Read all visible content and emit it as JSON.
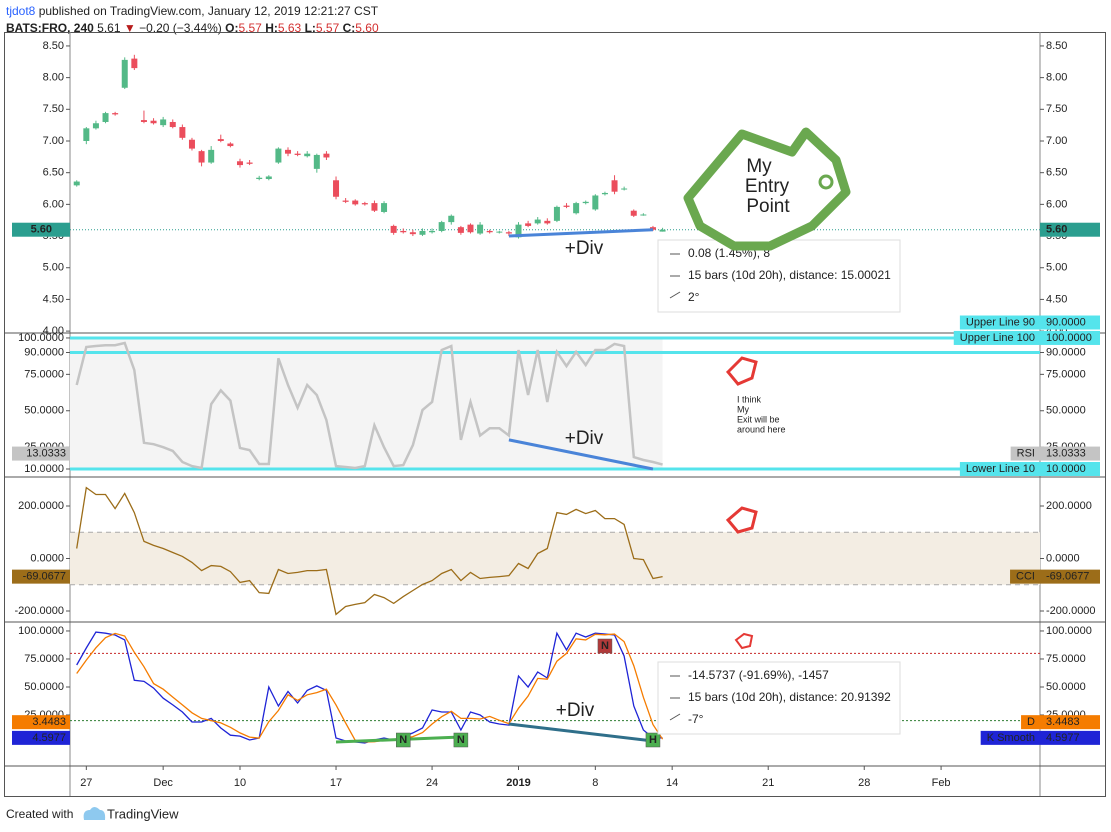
{
  "header": {
    "author": "tjdot8",
    "published": "published on TradingView.com, January 12, 2019 12:21:27 CST",
    "symbol": "BATS:FRO, 240",
    "last": "5.61",
    "arrow": "▼",
    "change": "−0.20 (−3.44%)",
    "ohlc": [
      {
        "label": "O:",
        "value": "5.57"
      },
      {
        "label": "H:",
        "value": "5.63"
      },
      {
        "label": "L:",
        "value": "5.57"
      },
      {
        "label": "C:",
        "value": "5.60"
      }
    ]
  },
  "footer": {
    "text": "Created with",
    "brand": "TradingView"
  },
  "chart_data": [
    {
      "type": "candlestick",
      "up_color": "#53b987",
      "down_color": "#eb4d5c",
      "open": [
        6.3,
        7.0,
        7.2,
        7.3,
        7.44,
        7.84,
        8.3,
        7.33,
        7.32,
        7.25,
        7.3,
        7.22,
        7.02,
        6.84,
        6.66,
        7.03,
        6.96,
        6.68,
        6.66,
        6.4,
        6.4,
        6.66,
        6.86,
        6.8,
        6.76,
        6.56,
        6.8,
        6.38,
        6.06,
        6.06,
        6.02,
        6.02,
        5.88,
        5.66,
        5.58,
        5.56,
        5.52,
        5.56,
        5.58,
        5.72,
        5.64,
        5.68,
        5.54,
        5.58,
        5.56,
        5.56,
        5.48,
        5.7,
        5.7,
        5.74,
        5.74,
        5.98,
        5.86,
        6.02,
        5.92,
        6.16,
        6.38,
        6.24,
        5.9,
        5.84,
        5.64,
        5.57
      ],
      "high": [
        6.38,
        7.22,
        7.32,
        7.46,
        7.46,
        8.32,
        8.36,
        7.48,
        7.36,
        7.38,
        7.34,
        7.26,
        7.05,
        6.86,
        6.92,
        7.1,
        6.98,
        6.72,
        6.7,
        6.45,
        6.46,
        6.9,
        6.9,
        6.84,
        6.84,
        6.8,
        6.84,
        6.44,
        6.1,
        6.08,
        6.04,
        6.06,
        6.05,
        5.68,
        5.62,
        5.6,
        5.62,
        5.62,
        5.74,
        5.84,
        5.66,
        5.7,
        5.72,
        5.6,
        5.58,
        5.58,
        5.72,
        5.74,
        5.8,
        5.78,
        5.98,
        6.02,
        6.04,
        6.06,
        6.16,
        6.2,
        6.46,
        6.28,
        5.92,
        5.86,
        5.66,
        5.63
      ],
      "low": [
        6.28,
        6.95,
        7.18,
        7.28,
        7.4,
        7.82,
        8.12,
        7.28,
        7.26,
        7.22,
        7.2,
        7.02,
        6.85,
        6.6,
        6.64,
        6.98,
        6.9,
        6.58,
        6.62,
        6.38,
        6.38,
        6.64,
        6.76,
        6.76,
        6.74,
        6.5,
        6.7,
        6.08,
        6.02,
        5.98,
        5.98,
        5.88,
        5.86,
        5.52,
        5.54,
        5.5,
        5.5,
        5.54,
        5.56,
        5.68,
        5.52,
        5.54,
        5.52,
        5.54,
        5.54,
        5.5,
        5.46,
        5.64,
        5.68,
        5.68,
        5.72,
        5.94,
        5.84,
        6.0,
        5.9,
        6.14,
        6.16,
        6.22,
        5.8,
        5.82,
        5.58,
        5.57
      ],
      "close": [
        6.36,
        7.2,
        7.28,
        7.44,
        7.42,
        8.28,
        8.15,
        7.3,
        7.28,
        7.34,
        7.22,
        7.05,
        6.88,
        6.66,
        6.86,
        7.0,
        6.92,
        6.62,
        6.64,
        6.42,
        6.44,
        6.88,
        6.8,
        6.78,
        6.8,
        6.78,
        6.74,
        6.12,
        6.04,
        6.0,
        6.0,
        5.9,
        6.02,
        5.55,
        5.56,
        5.53,
        5.58,
        5.58,
        5.72,
        5.82,
        5.55,
        5.56,
        5.68,
        5.56,
        5.57,
        5.54,
        5.68,
        5.66,
        5.76,
        5.7,
        5.96,
        5.96,
        6.02,
        6.04,
        6.14,
        6.18,
        6.2,
        6.25,
        5.82,
        5.84,
        5.6,
        5.6
      ],
      "xlim": [
        -0.7,
        100.3
      ],
      "xticks": [
        {
          "value": 1,
          "label": "27"
        },
        {
          "value": 9,
          "label": "Dec"
        },
        {
          "value": 17,
          "label": "10"
        },
        {
          "value": 27,
          "label": "17"
        },
        {
          "value": 37,
          "label": "24"
        },
        {
          "value": 46,
          "label": "2019"
        },
        {
          "value": 54,
          "label": "8"
        },
        {
          "value": 62,
          "label": "14"
        },
        {
          "value": 72,
          "label": "21"
        },
        {
          "value": 82,
          "label": "28"
        },
        {
          "value": 90,
          "label": "Feb"
        }
      ],
      "ylim": [
        3.97,
        8.72
      ],
      "yticks": [
        {
          "value": 4,
          "label": "4.00"
        },
        {
          "value": 4.5,
          "label": "4.50"
        },
        {
          "value": 5,
          "label": "5.00"
        },
        {
          "value": 5.5,
          "label": "5.50"
        },
        {
          "value": 6,
          "label": "6.00"
        },
        {
          "value": 6.5,
          "label": "6.50"
        },
        {
          "value": 7,
          "label": "7.00"
        },
        {
          "value": 7.5,
          "label": "7.50"
        },
        {
          "value": 8,
          "label": "8.00"
        },
        {
          "value": 8.5,
          "label": "8.50"
        }
      ],
      "price_line": {
        "value": 5.6,
        "label": "5.60",
        "color": "#2b9e8f"
      },
      "trendlines": [
        {
          "x": [
            45,
            60
          ],
          "y": [
            5.5,
            5.6
          ],
          "color": "#4a84d8"
        }
      ],
      "div_label": "+Div",
      "measure": [
        "0.08 (1.45%), 8",
        "15 bars (10d 20h), distance: 15.00021",
        "2°"
      ],
      "callout": [
        "My",
        "Entry",
        "Point"
      ]
    },
    {
      "type": "line",
      "series": [
        {
          "name": "RSI",
          "color": "#c4c4c4",
          "values": [
            67.7,
            93.8,
            94.5,
            95,
            95,
            96.5,
            78,
            28,
            27,
            25,
            22.4,
            14.8,
            12,
            10.7,
            54.6,
            64,
            57,
            24.4,
            23,
            13.4,
            13.4,
            86,
            67.7,
            52,
            67.7,
            60.8,
            43.6,
            12,
            11.4,
            10.7,
            12,
            40,
            25,
            12,
            12.7,
            26.5,
            50.5,
            56,
            91.7,
            94.5,
            30,
            56,
            33,
            38,
            38,
            33,
            91.7,
            60.8,
            91.7,
            56,
            90.4,
            80.7,
            90.4,
            81.4,
            91.7,
            91.7,
            95.9,
            94.5,
            18.2,
            16.2,
            14.8,
            13.0333
          ]
        }
      ],
      "hlines": [
        {
          "name": "Upper Line 100",
          "value": 100,
          "label": "100.0000",
          "color": "#55e4ec"
        },
        {
          "name": "Upper Line 90",
          "value": 90,
          "label": "90.0000",
          "color": "#55e4ec"
        },
        {
          "name": "Lower Line 10",
          "value": 10,
          "label": "10.0000",
          "color": "#55e4ec"
        }
      ],
      "shade_color": "#f4f4f4",
      "ylim": [
        4.5,
        103.4
      ],
      "yticks": [
        {
          "value": 10,
          "label": "10.0000"
        },
        {
          "value": 25,
          "label": "25.0000"
        },
        {
          "value": 50,
          "label": "50.0000"
        },
        {
          "value": 75,
          "label": "75.0000"
        },
        {
          "value": 90,
          "label": "90.0000"
        },
        {
          "value": 100,
          "label": "100.0000"
        }
      ],
      "trendlines": [
        {
          "x": [
            45,
            60
          ],
          "y": [
            30,
            10
          ],
          "color": "#4a84d8"
        }
      ],
      "div_label": "+Div",
      "note": [
        "I think",
        "My",
        "Exit will be",
        "around here"
      ]
    },
    {
      "type": "line",
      "series": [
        {
          "name": "CCI",
          "color": "#9c6d19",
          "values": [
            38,
            270,
            244,
            244,
            190,
            248,
            175,
            65,
            50,
            38,
            23,
            8,
            -15,
            -46,
            -27,
            -30,
            -50,
            -91,
            -84,
            -130,
            -133,
            -42,
            -57,
            -53,
            -46,
            -46,
            -42,
            -213,
            -183,
            -175,
            -168,
            -137,
            -149,
            -171,
            -145,
            -122,
            -99,
            -84,
            -57,
            -42,
            -84,
            -53,
            -76,
            -72,
            -69,
            -65,
            -19,
            -38,
            19,
            38,
            175,
            168,
            187,
            171,
            183,
            152,
            152,
            130,
            0,
            -4,
            -76,
            -69.0677
          ]
        }
      ],
      "band": [
        -100,
        100
      ],
      "band_color": "#f3ede3",
      "ylim": [
        -241.9,
        310.5
      ],
      "yticks": [
        {
          "value": -200,
          "label": "-200.0000"
        },
        {
          "value": 0,
          "label": "0.0000"
        },
        {
          "value": 200,
          "label": "200.0000"
        }
      ]
    },
    {
      "type": "line",
      "series": [
        {
          "name": "K Smooth",
          "color": "#1f24d6",
          "values": [
            69.6,
            84.8,
            99,
            98,
            96.4,
            92,
            56,
            55,
            49,
            40,
            34,
            27.7,
            18.8,
            18.8,
            22,
            13.4,
            7,
            6.2,
            2.7,
            4.5,
            50,
            33,
            46,
            35.7,
            47,
            51,
            47,
            4.5,
            1.8,
            0.9,
            0,
            2.7,
            4.5,
            2.7,
            5.4,
            9,
            13.4,
            29.5,
            27.7,
            27.7,
            11.6,
            27.7,
            25,
            18.8,
            17,
            16,
            59.8,
            50,
            63.4,
            58,
            98,
            83,
            98,
            94.6,
            98,
            97.3,
            96.4,
            77.7,
            33,
            11.6,
            4.5,
            4.5977
          ]
        },
        {
          "name": "D",
          "color": "#f57c00",
          "values": [
            62,
            74,
            85,
            94,
            97.8,
            95.5,
            81,
            68,
            53,
            48,
            41,
            34,
            27,
            22,
            20,
            18,
            14,
            9,
            5.3,
            4.4,
            19,
            29,
            43,
            38,
            43,
            45,
            48,
            34,
            18,
            2.4,
            0.9,
            1.2,
            2.4,
            3.3,
            4.2,
            5.7,
            9.3,
            17,
            23.5,
            28.3,
            22,
            22,
            21.4,
            23.8,
            20.3,
            17.3,
            31,
            42,
            57.7,
            57,
            73,
            80,
            93,
            92,
            97,
            96.6,
            97.2,
            90.5,
            69,
            40.8,
            16.4,
            3.4483
          ]
        }
      ],
      "hlines": [
        {
          "value": 80,
          "color": "#c62828",
          "style": "dotted"
        },
        {
          "value": 20,
          "color": "#2e7d32",
          "style": "dotted"
        }
      ],
      "ylim": [
        -20.5,
        108
      ],
      "yticks": [
        {
          "value": 25,
          "label": "25.0000"
        },
        {
          "value": 50,
          "label": "50.0000"
        },
        {
          "value": 75,
          "label": "75.0000"
        },
        {
          "value": 100,
          "label": "100.0000"
        }
      ],
      "trendlines": [
        {
          "x": [
            27,
            40
          ],
          "y": [
            0.9,
            5.4
          ],
          "color": "#4caf50"
        },
        {
          "x": [
            45,
            60
          ],
          "y": [
            17,
            1.8
          ],
          "color": "#2f6f8a"
        }
      ],
      "div_label": "+Div",
      "measure": [
        "-14.5737 (-91.69%), -1457",
        "15 bars (10d 20h), distance: 20.91392",
        "-7°"
      ],
      "markers": [
        {
          "x": 34,
          "label": "N",
          "color": "#4caf50"
        },
        {
          "x": 40,
          "label": "N",
          "color": "#4caf50"
        },
        {
          "x": 55,
          "label": "N",
          "color": "#b23a3a"
        },
        {
          "x": 60,
          "label": "H",
          "color": "#4caf50"
        }
      ]
    }
  ]
}
